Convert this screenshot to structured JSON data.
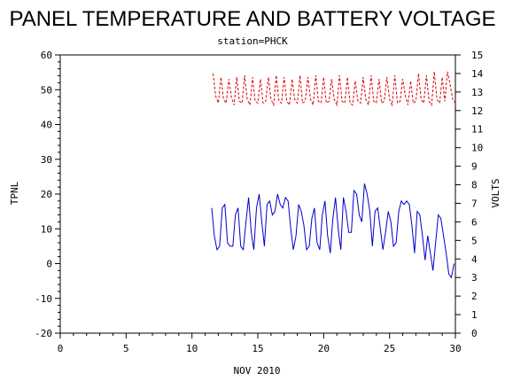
{
  "chart_data": {
    "type": "line",
    "title": "PANEL TEMPERATURE AND BATTERY VOLTAGE",
    "subtitle": "station=PHCK",
    "xlabel": "NOV 2010",
    "ylabel_left": "TPNL",
    "ylabel_right": "VOLTS",
    "xlim": [
      0,
      30
    ],
    "ylim_left": [
      -20,
      60
    ],
    "ylim_right": [
      0,
      15
    ],
    "x_ticks": [
      "0",
      "5",
      "10",
      "15",
      "20",
      "25",
      "30"
    ],
    "y_left_ticks": [
      "-20",
      "-10",
      "0",
      "10",
      "20",
      "30",
      "40",
      "50",
      "60"
    ],
    "y_right_ticks": [
      "0",
      "1",
      "2",
      "3",
      "4",
      "5",
      "6",
      "7",
      "8",
      "9",
      "10",
      "11",
      "12",
      "13",
      "14",
      "15"
    ],
    "grid": false,
    "series": [
      {
        "axis": "left",
        "color": "#0000cc",
        "style": "solid",
        "x": [
          11.5,
          11.7,
          11.9,
          12.1,
          12.3,
          12.5,
          12.7,
          12.9,
          13.1,
          13.3,
          13.5,
          13.7,
          13.9,
          14.1,
          14.3,
          14.5,
          14.7,
          14.9,
          15.1,
          15.3,
          15.5,
          15.7,
          15.9,
          16.1,
          16.3,
          16.5,
          16.7,
          16.9,
          17.1,
          17.3,
          17.5,
          17.7,
          17.9,
          18.1,
          18.3,
          18.5,
          18.7,
          18.9,
          19.1,
          19.3,
          19.5,
          19.7,
          19.9,
          20.1,
          20.3,
          20.5,
          20.7,
          20.9,
          21.1,
          21.3,
          21.5,
          21.7,
          21.9,
          22.1,
          22.3,
          22.5,
          22.7,
          22.9,
          23.1,
          23.3,
          23.5,
          23.7,
          23.9,
          24.1,
          24.3,
          24.5,
          24.7,
          24.9,
          25.1,
          25.3,
          25.5,
          25.7,
          25.9,
          26.1,
          26.3,
          26.5,
          26.7,
          26.9,
          27.1,
          27.3,
          27.5,
          27.7,
          27.9,
          28.1,
          28.3,
          28.5,
          28.7,
          28.9,
          29.1,
          29.3,
          29.5,
          29.7,
          29.9
        ],
        "values": [
          16,
          8,
          4,
          5,
          16,
          17,
          6,
          5,
          5,
          14,
          16,
          5,
          4,
          12,
          19,
          9,
          4,
          16,
          20,
          12,
          5,
          17,
          18,
          14,
          15,
          20,
          17,
          16,
          19,
          18,
          10,
          4,
          8,
          17,
          15,
          11,
          4,
          5,
          13,
          16,
          6,
          4,
          14,
          18,
          8,
          3,
          13,
          19,
          10,
          4,
          19,
          15,
          9,
          9,
          21,
          20,
          14,
          12,
          23,
          20,
          15,
          5,
          15,
          16,
          10,
          4,
          9,
          15,
          12,
          5,
          6,
          15,
          18,
          17,
          18,
          17,
          11,
          3,
          15,
          14,
          8,
          1,
          8,
          3,
          -2,
          6,
          14,
          13,
          8,
          3,
          -3,
          -4,
          0
        ]
      },
      {
        "axis": "right",
        "color": "#dd0000",
        "style": "dashed",
        "x": [
          11.6,
          11.8,
          12.0,
          12.2,
          12.4,
          12.6,
          12.8,
          13.0,
          13.2,
          13.4,
          13.6,
          13.8,
          14.0,
          14.2,
          14.4,
          14.6,
          14.8,
          15.0,
          15.2,
          15.4,
          15.6,
          15.8,
          16.0,
          16.2,
          16.4,
          16.6,
          16.8,
          17.0,
          17.2,
          17.4,
          17.6,
          17.8,
          18.0,
          18.2,
          18.4,
          18.6,
          18.8,
          19.0,
          19.2,
          19.4,
          19.6,
          19.8,
          20.0,
          20.2,
          20.4,
          20.6,
          20.8,
          21.0,
          21.2,
          21.4,
          21.6,
          21.8,
          22.0,
          22.2,
          22.4,
          22.6,
          22.8,
          23.0,
          23.2,
          23.4,
          23.6,
          23.8,
          24.0,
          24.2,
          24.4,
          24.6,
          24.8,
          25.0,
          25.2,
          25.4,
          25.6,
          25.8,
          26.0,
          26.2,
          26.4,
          26.6,
          26.8,
          27.0,
          27.2,
          27.4,
          27.6,
          27.8,
          28.0,
          28.2,
          28.4,
          28.6,
          28.8,
          29.0,
          29.2,
          29.4,
          29.6,
          29.8,
          30.0
        ],
        "values": [
          14.0,
          12.8,
          12.4,
          13.8,
          12.6,
          12.4,
          13.7,
          12.7,
          12.3,
          13.8,
          12.5,
          12.4,
          13.9,
          12.6,
          12.3,
          13.8,
          12.5,
          12.4,
          13.7,
          12.4,
          12.5,
          13.8,
          12.6,
          12.3,
          13.9,
          12.5,
          12.4,
          13.8,
          12.5,
          12.3,
          13.7,
          12.6,
          12.4,
          13.9,
          12.4,
          12.5,
          13.8,
          12.6,
          12.3,
          13.9,
          12.5,
          12.4,
          13.8,
          12.4,
          12.5,
          13.7,
          12.6,
          12.3,
          13.9,
          12.5,
          12.4,
          13.8,
          12.4,
          12.3,
          13.6,
          12.5,
          12.4,
          13.8,
          12.6,
          12.3,
          13.9,
          12.5,
          12.4,
          13.7,
          12.4,
          12.5,
          13.8,
          12.6,
          12.3,
          13.9,
          12.4,
          12.5,
          13.7,
          12.8,
          12.3,
          13.6,
          12.4,
          12.5,
          14.0,
          12.6,
          12.4,
          13.9,
          12.5,
          12.3,
          14.1,
          12.6,
          12.4,
          13.8,
          12.5,
          14.1,
          13.4,
          12.6,
          12.4
        ]
      }
    ]
  }
}
